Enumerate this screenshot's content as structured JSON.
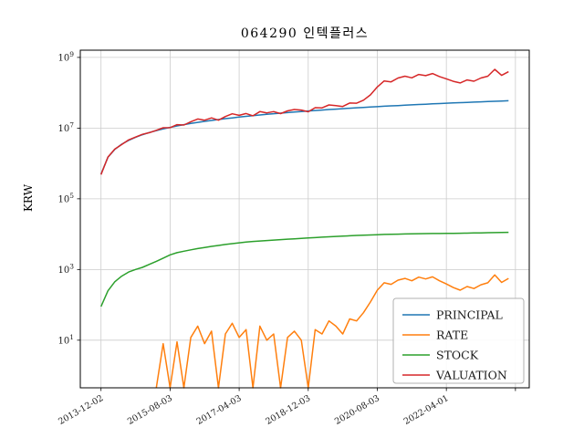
{
  "chart_data": {
    "type": "line",
    "title": "064290 인텍플러스",
    "xlabel": "",
    "ylabel": "KRW",
    "yscale": "log",
    "grid": true,
    "legend_position": "lower right",
    "xlim": [
      -6,
      124
    ],
    "ylim": [
      0.45,
      1600000000
    ],
    "ytick_exponents": [
      1,
      3,
      5,
      7,
      9
    ],
    "xtick_positions": [
      0,
      20,
      40,
      60,
      80,
      100,
      120
    ],
    "xtick_labels": [
      "2013-12-02",
      "2015-08-03",
      "2017-04-03",
      "2018-12-03",
      "2020-08-03",
      "2022-04-01",
      ""
    ],
    "x_months_from_start": [
      0,
      2,
      4,
      6,
      8,
      10,
      12,
      14,
      16,
      18,
      20,
      22,
      24,
      26,
      28,
      30,
      32,
      34,
      36,
      38,
      40,
      42,
      44,
      46,
      48,
      50,
      52,
      54,
      56,
      58,
      60,
      62,
      64,
      66,
      68,
      70,
      72,
      74,
      76,
      78,
      80,
      82,
      84,
      86,
      88,
      90,
      92,
      94,
      96,
      98,
      100,
      102,
      104,
      106,
      108,
      110,
      112,
      114,
      116,
      118
    ],
    "series": [
      {
        "name": "PRINCIPAL",
        "color": "#1f77b4",
        "values": [
          500000,
          1500000,
          2500000,
          3500000,
          4500000,
          5500000,
          6500000,
          7500000,
          8500000,
          9500000,
          10500000,
          11500000,
          12500000,
          13500000,
          14500000,
          15500000,
          16500000,
          17500000,
          18500000,
          19500000,
          20500000,
          21500000,
          22500000,
          23500000,
          24500000,
          25500000,
          26500000,
          27500000,
          28500000,
          29500000,
          30500000,
          31500000,
          32500000,
          33500000,
          34500000,
          35500000,
          36500000,
          37500000,
          38500000,
          39500000,
          40500000,
          41500000,
          42500000,
          43500000,
          44500000,
          45500000,
          46500000,
          47500000,
          48500000,
          49500000,
          50500000,
          51500000,
          52500000,
          53500000,
          54500000,
          55500000,
          56500000,
          57500000,
          58500000,
          59500000
        ]
      },
      {
        "name": "RATE",
        "color": "#ff7f0e",
        "values": [
          null,
          null,
          null,
          null,
          null,
          null,
          null,
          null,
          -1,
          8,
          -2,
          9,
          -2,
          12,
          25,
          8,
          18,
          -4,
          15,
          30,
          12,
          20,
          -1,
          25,
          10,
          15,
          -3,
          12,
          18,
          10,
          -5,
          20,
          15,
          35,
          25,
          15,
          40,
          35,
          60,
          120,
          260,
          420,
          380,
          500,
          560,
          480,
          610,
          540,
          620,
          480,
          390,
          310,
          260,
          330,
          290,
          370,
          420,
          700,
          430,
          560
        ]
      },
      {
        "name": "STOCK",
        "color": "#2ca02c",
        "values": [
          90,
          250,
          450,
          650,
          850,
          1000,
          1150,
          1400,
          1700,
          2100,
          2600,
          3000,
          3300,
          3600,
          3900,
          4200,
          4500,
          4800,
          5100,
          5400,
          5700,
          6000,
          6200,
          6400,
          6600,
          6800,
          7000,
          7200,
          7400,
          7600,
          7800,
          8000,
          8200,
          8400,
          8600,
          8800,
          9000,
          9200,
          9350,
          9500,
          9650,
          9800,
          9900,
          10000,
          10100,
          10200,
          10300,
          10350,
          10400,
          10450,
          10500,
          10550,
          10600,
          10700,
          10800,
          10900,
          11000,
          11100,
          11200,
          11300
        ]
      },
      {
        "name": "VALUATION",
        "color": "#d62728",
        "values": [
          485000,
          1515000,
          2550000,
          3430000,
          4635000,
          5582500,
          6662500,
          7425000,
          8670000,
          10260000,
          10290000,
          12535000,
          12250000,
          15120000,
          18125000,
          16740000,
          19470000,
          16800000,
          21275000,
          25350000,
          22960000,
          25800000,
          22275000,
          29375000,
          26950000,
          29325000,
          25705000,
          30800000,
          33630000,
          32450000,
          28975000,
          37800000,
          37375000,
          45225000,
          43125000,
          40825000,
          51100000,
          50625000,
          61600000,
          86900000,
          145800000,
          215800000,
          204000000,
          261000000,
          293700000,
          263900000,
          330150000,
          304000000,
          349200000,
          287100000,
          247450000,
          211150000,
          189000000,
          230050000,
          212550000,
          260850000,
          293800000,
          460000000,
          310050000,
          392700000
        ]
      }
    ],
    "legend_entries": [
      "PRINCIPAL",
      "RATE",
      "STOCK",
      "VALUATION"
    ],
    "colors": {
      "grid": "#cccccc",
      "frame": "#000000",
      "legend_border": "#b0b0b0"
    }
  }
}
